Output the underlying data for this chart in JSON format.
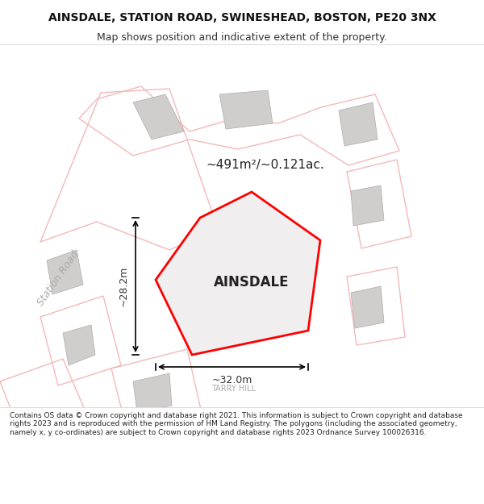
{
  "title": "AINSDALE, STATION ROAD, SWINESHEAD, BOSTON, PE20 3NX",
  "subtitle": "Map shows position and indicative extent of the property.",
  "footer": "Contains OS data © Crown copyright and database right 2021. This information is subject to Crown copyright and database rights 2023 and is reproduced with the permission of HM Land Registry. The polygons (including the associated geometry, namely x, y co-ordinates) are subject to Crown copyright and database rights 2023 Ordnance Survey 100026316.",
  "property_label": "AINSDALE",
  "area_label": "~491m²/~0.121ac.",
  "width_label": "~32.0m",
  "height_label": "~28.2m",
  "road_label_1": "Station Road",
  "road_label_2": "TARRY HILL",
  "map_bg": "#f0eeee",
  "plot_color": "#ff0000",
  "building_fill": "#d8d5d5",
  "road_line_color": "#f5b8b8"
}
